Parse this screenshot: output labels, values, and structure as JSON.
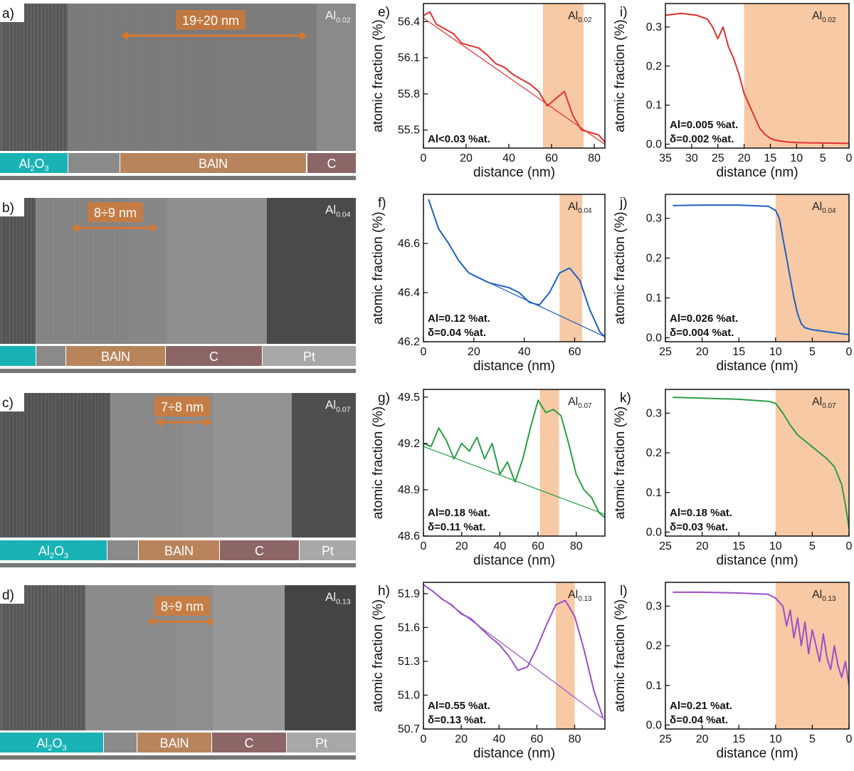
{
  "figure": {
    "tem_panels": [
      {
        "letter": "a)",
        "sample": "Al",
        "sub": "0.02",
        "width_label": "19÷20 nm",
        "layers": [
          {
            "name": "Al2O3",
            "label": "Al",
            "sub": "2",
            "after": "O",
            "sub2": "3",
            "color": "#19b3b6"
          },
          {
            "name": "gap",
            "label": "",
            "color": "#8a8a8a"
          },
          {
            "name": "BAlN",
            "label": "BAlN",
            "color": "#b8845c"
          },
          {
            "name": "C",
            "label": "C",
            "color": "#8c6666"
          }
        ]
      },
      {
        "letter": "b)",
        "sample": "Al",
        "sub": "0.04",
        "width_label": "8÷9 nm",
        "layers": [
          {
            "name": "Al2O3",
            "label": "",
            "color": "#19b3b6"
          },
          {
            "name": "gap",
            "label": "",
            "color": "#8a8a8a"
          },
          {
            "name": "BAlN",
            "label": "BAlN",
            "color": "#b8845c"
          },
          {
            "name": "C",
            "label": "C",
            "color": "#8c6666"
          },
          {
            "name": "Pt",
            "label": "Pt",
            "color": "#a8a8a8"
          }
        ]
      },
      {
        "letter": "c)",
        "sample": "Al",
        "sub": "0.07",
        "width_label": "7÷8 nm",
        "layers": [
          {
            "name": "Al2O3",
            "label": "Al",
            "sub": "2",
            "after": "O",
            "sub2": "3",
            "color": "#19b3b6"
          },
          {
            "name": "gap",
            "label": "",
            "color": "#8a8a8a"
          },
          {
            "name": "BAlN",
            "label": "BAlN",
            "color": "#b8845c"
          },
          {
            "name": "C",
            "label": "C",
            "color": "#8c6666"
          },
          {
            "name": "Pt",
            "label": "Pt",
            "color": "#a8a8a8"
          }
        ]
      },
      {
        "letter": "d)",
        "sample": "Al",
        "sub": "0.13",
        "width_label": "8÷9 nm",
        "layers": [
          {
            "name": "Al2O3",
            "label": "Al",
            "sub": "2",
            "after": "O",
            "sub2": "3",
            "color": "#19b3b6"
          },
          {
            "name": "gap",
            "label": "",
            "color": "#8a8a8a"
          },
          {
            "name": "BAlN",
            "label": "BAlN",
            "color": "#b8845c"
          },
          {
            "name": "C",
            "label": "C",
            "color": "#8c6666"
          },
          {
            "name": "Pt",
            "label": "Pt",
            "color": "#a8a8a8"
          }
        ]
      }
    ],
    "arrow_color": "#d9782d",
    "shade_color": "#f7c9a5"
  },
  "chart_data": [
    {
      "id": "e",
      "letter": "e)",
      "type": "line",
      "color": "#e0312f",
      "xlabel": "distance (nm)",
      "ylabel": "atomic fraction (%)",
      "xlim": [
        0,
        85
      ],
      "ylim": [
        55.35,
        56.55
      ],
      "x_reversed": false,
      "xticks": [
        0,
        20,
        40,
        60,
        80
      ],
      "yticks": [
        "55.5",
        "55.8",
        "56.1",
        "56.4"
      ],
      "shade": [
        56,
        75
      ],
      "tag": "Al",
      "tag_sub": "0.02",
      "annotations": [
        "Al<0.03 %at."
      ],
      "series": [
        {
          "x": [
            0,
            3,
            6,
            10,
            14,
            18,
            22,
            26,
            30,
            34,
            38,
            42,
            46,
            50,
            54,
            58,
            62,
            66,
            70,
            74,
            78,
            82,
            85
          ],
          "y": [
            56.45,
            56.48,
            56.38,
            56.34,
            56.3,
            56.22,
            56.2,
            56.18,
            56.12,
            56.05,
            56.02,
            55.96,
            55.92,
            55.88,
            55.82,
            55.7,
            55.76,
            55.82,
            55.62,
            55.5,
            55.48,
            55.46,
            55.4
          ]
        },
        {
          "x": [
            0,
            85
          ],
          "y": [
            56.43,
            55.38
          ],
          "fit": true
        }
      ]
    },
    {
      "id": "i",
      "letter": "i)",
      "type": "line",
      "color": "#e0312f",
      "xlabel": "distance (nm)",
      "ylabel": "atomic fraction (%)",
      "xlim": [
        35,
        0
      ],
      "ylim": [
        -0.01,
        0.36
      ],
      "x_reversed": true,
      "xticks": [
        35,
        30,
        25,
        20,
        15,
        10,
        5,
        0
      ],
      "yticks": [
        "0.0",
        "0.1",
        "0.2",
        "0.3"
      ],
      "shade": [
        20,
        0
      ],
      "tag": "Al",
      "tag_sub": "0.02",
      "annotations": [
        "Al=0.005 %at.",
        "δ=0.002 %at."
      ],
      "series": [
        {
          "x": [
            35,
            32,
            29,
            27,
            26,
            25,
            24,
            23,
            22,
            21,
            20,
            19,
            18,
            17,
            16,
            15,
            14,
            12,
            10,
            5,
            0
          ],
          "y": [
            0.33,
            0.335,
            0.33,
            0.32,
            0.3,
            0.27,
            0.3,
            0.25,
            0.22,
            0.18,
            0.13,
            0.1,
            0.07,
            0.04,
            0.025,
            0.015,
            0.01,
            0.006,
            0.004,
            0.003,
            0.002
          ]
        }
      ]
    },
    {
      "id": "f",
      "letter": "f)",
      "type": "line",
      "color": "#1f5fc2",
      "xlabel": "distance (nm)",
      "ylabel": "atomic fraction (%)",
      "xlim": [
        0,
        72
      ],
      "ylim": [
        46.2,
        46.8
      ],
      "x_reversed": false,
      "xticks": [
        0,
        20,
        40,
        60
      ],
      "yticks": [
        "46.2",
        "46.4",
        "46.6"
      ],
      "shade": [
        54,
        63
      ],
      "tag": "Al",
      "tag_sub": "0.04",
      "annotations": [
        "Al=0.12 %at.",
        "δ=0.04 %at."
      ],
      "series": [
        {
          "x": [
            2,
            6,
            10,
            14,
            18,
            22,
            26,
            30,
            34,
            38,
            42,
            46,
            50,
            54,
            58,
            62,
            66,
            70,
            72
          ],
          "y": [
            46.78,
            46.66,
            46.6,
            46.53,
            46.48,
            46.46,
            46.44,
            46.43,
            46.42,
            46.4,
            46.36,
            46.35,
            46.4,
            46.48,
            46.5,
            46.45,
            46.33,
            46.24,
            46.22
          ]
        },
        {
          "x": [
            22,
            72
          ],
          "y": [
            46.46,
            46.22
          ],
          "fit": true
        }
      ]
    },
    {
      "id": "j",
      "letter": "j)",
      "type": "line",
      "color": "#1f5fc2",
      "xlabel": "distance (nm)",
      "ylabel": "atomic fraction (%)",
      "xlim": [
        25,
        0
      ],
      "ylim": [
        -0.01,
        0.36
      ],
      "x_reversed": true,
      "xticks": [
        25,
        20,
        15,
        10,
        5,
        0
      ],
      "yticks": [
        "0.0",
        "0.1",
        "0.2",
        "0.3"
      ],
      "shade": [
        10,
        0
      ],
      "tag": "Al",
      "tag_sub": "0.04",
      "annotations": [
        "Al=0.026 %at.",
        "δ=0.004 %at."
      ],
      "series": [
        {
          "x": [
            24,
            20,
            15,
            11,
            10,
            9.5,
            9,
            8.5,
            8,
            7.5,
            7,
            6.5,
            6,
            5,
            3,
            1,
            0
          ],
          "y": [
            0.332,
            0.333,
            0.333,
            0.33,
            0.32,
            0.3,
            0.25,
            0.2,
            0.15,
            0.1,
            0.06,
            0.035,
            0.025,
            0.02,
            0.015,
            0.01,
            0.008
          ]
        }
      ]
    },
    {
      "id": "g",
      "letter": "g)",
      "type": "line",
      "color": "#2a9e47",
      "xlabel": "distance (nm)",
      "ylabel": "atomic fraction (%)",
      "xlim": [
        0,
        95
      ],
      "ylim": [
        48.6,
        49.55
      ],
      "x_reversed": false,
      "xticks": [
        0,
        20,
        40,
        60,
        80
      ],
      "yticks": [
        "48.6",
        "48.9",
        "49.2",
        "49.5"
      ],
      "shade": [
        61,
        71
      ],
      "tag": "Al",
      "tag_sub": "0.07",
      "annotations": [
        "Al=0.18 %at.",
        "δ=0.11 %at."
      ],
      "series": [
        {
          "x": [
            0,
            4,
            8,
            12,
            16,
            20,
            24,
            28,
            32,
            36,
            40,
            44,
            48,
            52,
            56,
            60,
            64,
            68,
            72,
            76,
            80,
            84,
            88,
            92,
            95
          ],
          "y": [
            49.2,
            49.18,
            49.3,
            49.22,
            49.1,
            49.2,
            49.15,
            49.24,
            49.1,
            49.2,
            49.0,
            49.08,
            48.95,
            49.1,
            49.3,
            49.48,
            49.4,
            49.42,
            49.38,
            49.2,
            49.0,
            48.9,
            48.85,
            48.75,
            48.72
          ]
        },
        {
          "x": [
            0,
            95
          ],
          "y": [
            49.18,
            48.74
          ],
          "fit": true
        }
      ]
    },
    {
      "id": "k",
      "letter": "k)",
      "type": "line",
      "color": "#2a9e47",
      "xlabel": "distance (nm)",
      "ylabel": "atomic fraction (%)",
      "xlim": [
        25,
        0
      ],
      "ylim": [
        -0.01,
        0.36
      ],
      "x_reversed": true,
      "xticks": [
        25,
        20,
        15,
        10,
        5,
        0
      ],
      "yticks": [
        "0.0",
        "0.1",
        "0.2",
        "0.3"
      ],
      "shade": [
        10,
        0
      ],
      "tag": "Al",
      "tag_sub": "0.07",
      "annotations": [
        "Al=0.18 %at.",
        "δ=0.03 %at."
      ],
      "series": [
        {
          "x": [
            24,
            20,
            15,
            11,
            10,
            9,
            8,
            7,
            6,
            5,
            4,
            3,
            2,
            1,
            0.5,
            0
          ],
          "y": [
            0.34,
            0.338,
            0.335,
            0.33,
            0.325,
            0.3,
            0.27,
            0.245,
            0.23,
            0.215,
            0.2,
            0.185,
            0.165,
            0.12,
            0.07,
            0.01
          ]
        }
      ]
    },
    {
      "id": "h",
      "letter": "h)",
      "type": "line",
      "color": "#9b4fc9",
      "xlabel": "distance (nm)",
      "ylabel": "atomic fraction (%)",
      "xlim": [
        0,
        96
      ],
      "ylim": [
        50.7,
        52.0
      ],
      "x_reversed": false,
      "xticks": [
        0,
        20,
        40,
        60,
        80
      ],
      "yticks": [
        "50.7",
        "51.0",
        "51.3",
        "51.6",
        "51.9"
      ],
      "shade": [
        70,
        80
      ],
      "tag": "Al",
      "tag_sub": "0.13",
      "annotations": [
        "Al=0.55 %at.",
        "δ=0.13 %at."
      ],
      "series": [
        {
          "x": [
            0,
            5,
            10,
            15,
            20,
            25,
            30,
            35,
            40,
            45,
            50,
            55,
            60,
            65,
            70,
            75,
            80,
            85,
            90,
            95
          ],
          "y": [
            51.98,
            51.92,
            51.85,
            51.8,
            51.72,
            51.68,
            51.6,
            51.52,
            51.45,
            51.35,
            51.22,
            51.25,
            51.42,
            51.62,
            51.8,
            51.84,
            51.7,
            51.4,
            51.05,
            50.8
          ]
        },
        {
          "x": [
            0,
            96
          ],
          "y": [
            51.98,
            50.78
          ],
          "fit": true
        }
      ]
    },
    {
      "id": "l",
      "letter": "l)",
      "type": "line",
      "color": "#9b4fc9",
      "xlabel": "distance (nm)",
      "ylabel": "atomic fraction (%)",
      "xlim": [
        25,
        0
      ],
      "ylim": [
        -0.01,
        0.36
      ],
      "x_reversed": true,
      "xticks": [
        25,
        20,
        15,
        10,
        5,
        0
      ],
      "yticks": [
        "0.0",
        "0.1",
        "0.2",
        "0.3"
      ],
      "shade": [
        10,
        0
      ],
      "tag": "Al",
      "tag_sub": "0.13",
      "annotations": [
        "Al=0.21 %at.",
        "δ=0.04 %at."
      ],
      "series": [
        {
          "x": [
            24,
            20,
            15,
            11,
            10,
            9,
            8.5,
            8,
            7.5,
            7,
            6.5,
            6,
            5.5,
            5,
            4.5,
            4,
            3.5,
            3,
            2.5,
            2,
            1.5,
            1,
            0.5,
            0
          ],
          "y": [
            0.335,
            0.335,
            0.333,
            0.33,
            0.32,
            0.3,
            0.25,
            0.29,
            0.22,
            0.27,
            0.2,
            0.26,
            0.18,
            0.24,
            0.2,
            0.16,
            0.23,
            0.17,
            0.14,
            0.2,
            0.15,
            0.12,
            0.16,
            0.1
          ]
        }
      ]
    }
  ]
}
